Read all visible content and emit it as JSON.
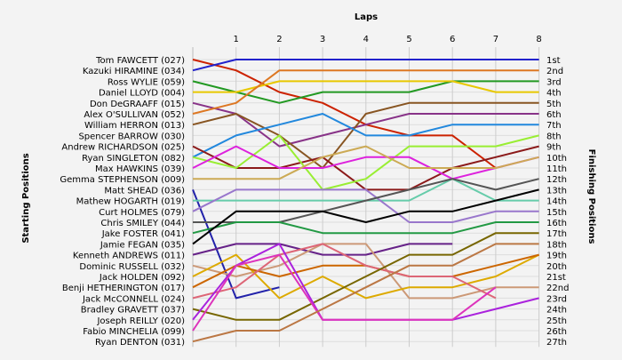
{
  "chart_data": {
    "type": "line",
    "title": "Laps",
    "ylabel_left": "Starting Positions",
    "ylabel_right": "Finishing Positions",
    "laps": [
      1,
      2,
      3,
      4,
      5,
      6,
      7,
      8
    ],
    "finish_labels": [
      "1st",
      "2nd",
      "3rd",
      "4th",
      "5th",
      "6th",
      "7th",
      "8th",
      "9th",
      "10th",
      "11th",
      "12th",
      "13th",
      "14th",
      "15th",
      "16th",
      "17th",
      "18th",
      "19th",
      "20th",
      "21st",
      "22nd",
      "23rd",
      "24th",
      "25th",
      "26th",
      "27th"
    ],
    "series": [
      {
        "name": "Tom FAWCETT (027)",
        "color": "#cc2200",
        "positions": [
          1,
          2,
          4,
          5,
          7,
          8,
          8,
          11
        ]
      },
      {
        "name": "Kazuki HIRAMINE (034)",
        "color": "#2222cc",
        "positions": [
          2,
          1,
          1,
          1,
          1,
          1,
          1,
          1,
          1
        ]
      },
      {
        "name": "Ross WYLIE (059)",
        "color": "#229922",
        "positions": [
          3,
          4,
          5,
          4,
          4,
          4,
          3,
          3,
          3
        ]
      },
      {
        "name": "Daniel LLOYD (004)",
        "color": "#e8c800",
        "positions": [
          4,
          4,
          3,
          3,
          3,
          3,
          3,
          4,
          4
        ]
      },
      {
        "name": "Don DeGRAAFF (015)",
        "color": "#883388",
        "positions": [
          5,
          6,
          9,
          8,
          7,
          6,
          6,
          6,
          6
        ]
      },
      {
        "name": "Alex O'SULLIVAN (052)",
        "color": "#dd7722",
        "positions": [
          6,
          5,
          2,
          2,
          2,
          2,
          2,
          2,
          2
        ]
      },
      {
        "name": "William HERRON (013)",
        "color": "#885522",
        "positions": [
          7,
          6,
          8,
          11,
          6,
          5,
          5,
          5,
          5
        ]
      },
      {
        "name": "Spencer BARROW (030)",
        "color": "#2288dd",
        "positions": [
          10,
          8,
          7,
          6,
          8,
          8,
          7,
          7,
          7
        ]
      },
      {
        "name": "Andrew RICHARDSON (025)",
        "color": "#8b1a1a",
        "positions": [
          9,
          11,
          11,
          10,
          13,
          13,
          11,
          10,
          9
        ]
      },
      {
        "name": "Ryan SINGLETON (082)",
        "color": "#99ee33",
        "positions": [
          10,
          11,
          8,
          13,
          12,
          9,
          9,
          9,
          8
        ]
      },
      {
        "name": "Max HAWKINS (039)",
        "color": "#dd22dd",
        "positions": [
          11,
          9,
          11,
          11,
          10,
          10,
          12,
          11,
          10
        ]
      },
      {
        "name": "Gemma STEPHENSON (009)",
        "color": "#ccaa55",
        "positions": [
          12,
          12,
          12,
          10,
          9,
          11,
          11,
          11,
          10
        ]
      },
      {
        "name": "Matt SHEAD (036)",
        "color": "#2222aa",
        "positions": [
          13,
          23,
          22
        ]
      },
      {
        "name": "Mathew HOGARTH (019)",
        "color": "#66ccaa",
        "positions": [
          14,
          14,
          14,
          14,
          14,
          14,
          12,
          14,
          14
        ]
      },
      {
        "name": "Curt HOLMES (079)",
        "color": "#9977cc",
        "positions": [
          15,
          13,
          13,
          13,
          13,
          16,
          16,
          15,
          15
        ]
      },
      {
        "name": "Chris SMILEY (044)",
        "color": "#555555",
        "positions": [
          16,
          16,
          16,
          15,
          14,
          13,
          12,
          13,
          12
        ]
      },
      {
        "name": "Jake FOSTER (041)",
        "color": "#229944",
        "positions": [
          17,
          16,
          16,
          17,
          17,
          17,
          17,
          16,
          16
        ]
      },
      {
        "name": "Jamie FEGAN (035)",
        "color": "#000000",
        "positions": [
          18,
          15,
          15,
          15,
          16,
          15,
          15,
          14,
          13
        ]
      },
      {
        "name": "Kenneth ANDREWS (011)",
        "color": "#662288",
        "positions": [
          19,
          18,
          18,
          19,
          19,
          18,
          18
        ]
      },
      {
        "name": "Dominic RUSSELL (032)",
        "color": "#cc9977",
        "positions": [
          20,
          21,
          20,
          18,
          18,
          23,
          23,
          22,
          22
        ]
      },
      {
        "name": "Jack HOLDEN (092)",
        "color": "#ddaa00",
        "positions": [
          21,
          19,
          23,
          21,
          23,
          22,
          22,
          21,
          19
        ]
      },
      {
        "name": "Benji HETHERINGTON (017)",
        "color": "#cc6600",
        "positions": [
          22,
          20,
          21,
          20,
          20,
          21,
          21,
          20,
          19
        ]
      },
      {
        "name": "Jack McCONNELL (024)",
        "color": "#dd6677",
        "positions": [
          23,
          22,
          19,
          18,
          20,
          21,
          21,
          23
        ]
      },
      {
        "name": "Bradley GRAVETT (037)",
        "color": "#776600",
        "positions": [
          24,
          25,
          25,
          23,
          21,
          19,
          19,
          17,
          17
        ]
      },
      {
        "name": "Joseph REILLY (020)",
        "color": "#aa22dd",
        "positions": [
          25,
          20,
          18,
          25,
          25,
          25,
          25,
          24,
          23
        ]
      },
      {
        "name": "Fabio MINCHELIA (099)",
        "color": "#dd33bb",
        "positions": [
          26,
          20,
          19,
          25,
          25,
          25,
          25,
          22
        ]
      },
      {
        "name": "Ryan DENTON (031)",
        "color": "#bb7744",
        "positions": [
          27,
          26,
          26,
          24,
          22,
          20,
          20,
          18,
          18
        ]
      }
    ]
  }
}
